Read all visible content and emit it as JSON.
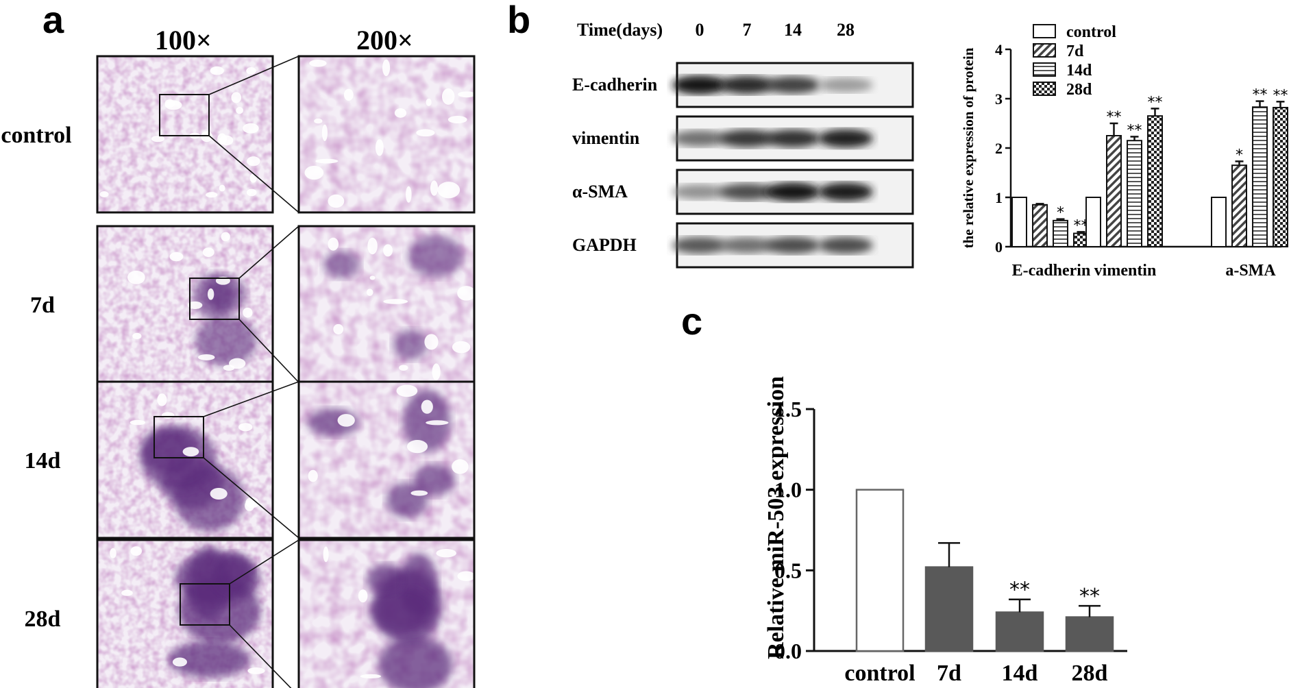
{
  "panel_a": {
    "letter": "a",
    "col_headers": [
      "100×",
      "200×"
    ],
    "rows": [
      {
        "label": "control",
        "fibrosis": 0.0
      },
      {
        "label": "7d",
        "fibrosis": 0.45
      },
      {
        "label": "14d",
        "fibrosis": 0.7
      },
      {
        "label": "28d",
        "fibrosis": 0.9
      }
    ]
  },
  "panel_b": {
    "letter": "b",
    "blot": {
      "time_label": "Time(days)",
      "times": [
        "0",
        "7",
        "14",
        "28"
      ],
      "proteins": [
        {
          "name": "E-cadherin",
          "intensity": [
            0.95,
            0.85,
            0.75,
            0.35
          ]
        },
        {
          "name": "vimentin",
          "intensity": [
            0.55,
            0.8,
            0.82,
            0.9
          ]
        },
        {
          "name": "α-SMA",
          "intensity": [
            0.4,
            0.7,
            0.95,
            0.92
          ]
        },
        {
          "name": "GAPDH",
          "intensity": [
            0.65,
            0.55,
            0.7,
            0.7
          ]
        }
      ]
    }
  },
  "panel_c": {
    "letter": "c"
  },
  "chart_data": [
    {
      "type": "bar",
      "ylabel": "the relative expression of protein",
      "categories": [
        "E-cadherin",
        "vimentin",
        "a-SMA"
      ],
      "yticks": [
        "0",
        "1",
        "2",
        "3",
        "4"
      ],
      "ylim": [
        0,
        4
      ],
      "legend_position": "top",
      "series": [
        {
          "name": "control",
          "pattern": "open",
          "values": [
            1.0,
            1.0,
            1.0
          ],
          "errors": [
            0,
            0,
            0
          ],
          "sig": [
            "",
            "",
            ""
          ]
        },
        {
          "name": "7d",
          "pattern": "diagonal",
          "values": [
            0.85,
            2.25,
            1.65
          ],
          "errors": [
            0.02,
            0.25,
            0.08
          ],
          "sig": [
            "",
            "**",
            "*"
          ]
        },
        {
          "name": "14d",
          "pattern": "horizontal",
          "values": [
            0.53,
            2.15,
            2.83
          ],
          "errors": [
            0.03,
            0.08,
            0.12
          ],
          "sig": [
            "*",
            "**",
            "**"
          ]
        },
        {
          "name": "28d",
          "pattern": "checker",
          "values": [
            0.27,
            2.65,
            2.82
          ],
          "errors": [
            0.03,
            0.15,
            0.12
          ],
          "sig": [
            "**",
            "**",
            "**"
          ]
        }
      ]
    },
    {
      "type": "bar",
      "ylabel": "Relative miR-503 expression",
      "categories": [
        "control",
        "7d",
        "14d",
        "28d"
      ],
      "yticks": [
        "0.0",
        "0.5",
        "1.0",
        "1.5"
      ],
      "ylim": [
        0,
        1.5
      ],
      "values": [
        1.0,
        0.52,
        0.24,
        0.21
      ],
      "errors": [
        0,
        0.15,
        0.08,
        0.07
      ],
      "sig": [
        "",
        "",
        "**",
        "**"
      ],
      "colors": [
        "#ffffff",
        "#595959",
        "#595959",
        "#595959"
      ]
    }
  ]
}
